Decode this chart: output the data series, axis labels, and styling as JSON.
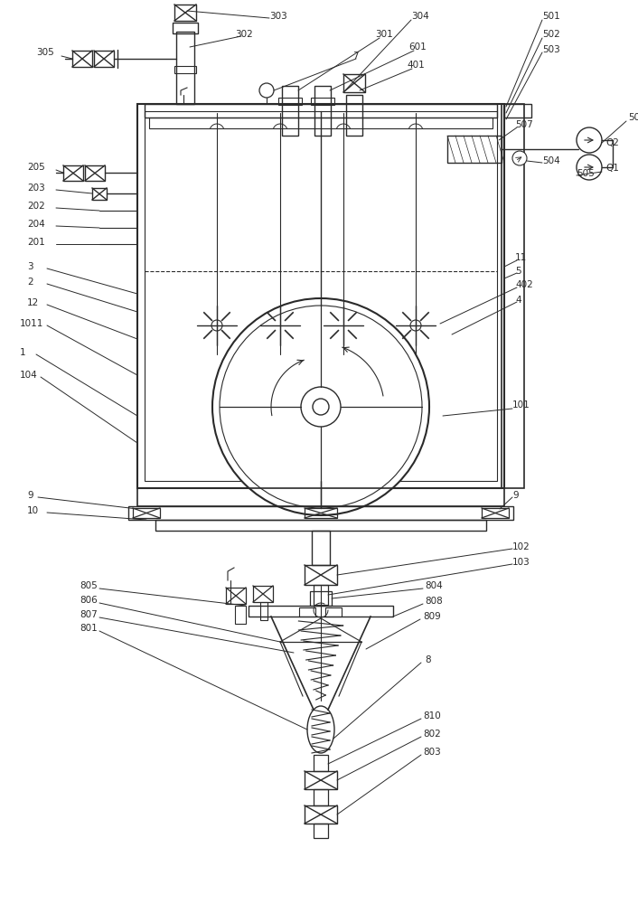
{
  "bg_color": "#ffffff",
  "lc": "#2a2a2a",
  "fig_w": 7.06,
  "fig_h": 10.0,
  "dpi": 100
}
